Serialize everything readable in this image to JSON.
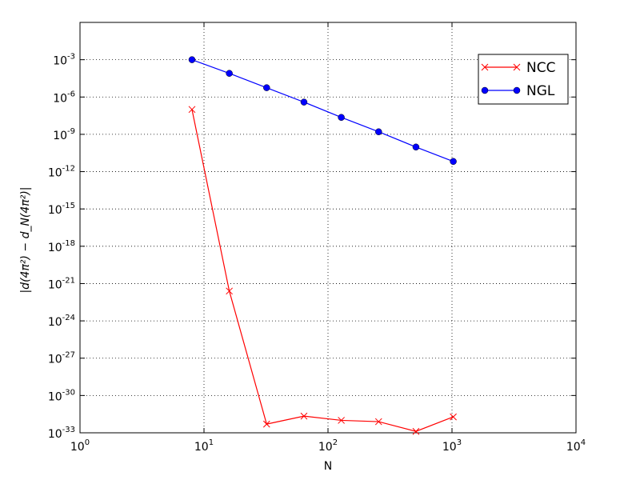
{
  "chart_data": {
    "type": "line",
    "x_label": "N",
    "y_label": "|d(4π²) − d_N(4π²)|",
    "x": [
      8,
      16,
      32,
      64,
      128,
      256,
      512,
      1024
    ],
    "series": [
      {
        "name": "NCC",
        "color": "#ff0000",
        "marker": "x",
        "values": [
          1e-07,
          2.5e-22,
          5e-33,
          2.2e-32,
          1e-32,
          7.9e-33,
          1.3e-33,
          1.9e-32
        ]
      },
      {
        "name": "NGL",
        "color": "#0000ff",
        "marker": "o",
        "values": [
          0.001,
          8e-05,
          5.6e-06,
          3.9e-07,
          2.3e-08,
          1.6e-09,
          9.5e-11,
          6.6e-12
        ]
      }
    ],
    "xlog": true,
    "ylog": true,
    "xlim": [
      1,
      10000
    ],
    "ylim": [
      1e-33,
      1
    ],
    "xticks": [
      {
        "value": 1,
        "label": "10^0"
      },
      {
        "value": 10,
        "label": "10^1"
      },
      {
        "value": 100,
        "label": "10^2"
      },
      {
        "value": 1000,
        "label": "10^3"
      },
      {
        "value": 10000,
        "label": "10^4"
      }
    ],
    "yticks": [
      {
        "value": 0.001,
        "label": "10^-3"
      },
      {
        "value": 1e-06,
        "label": "10^-6"
      },
      {
        "value": 1e-09,
        "label": "10^-9"
      },
      {
        "value": 1e-12,
        "label": "10^-12"
      },
      {
        "value": 1e-15,
        "label": "10^-15"
      },
      {
        "value": 1e-18,
        "label": "10^-18"
      },
      {
        "value": 1e-21,
        "label": "10^-21"
      },
      {
        "value": 1e-24,
        "label": "10^-24"
      },
      {
        "value": 1e-27,
        "label": "10^-27"
      },
      {
        "value": 1e-30,
        "label": "10^-30"
      },
      {
        "value": 1e-33,
        "label": "10^-33"
      }
    ],
    "grid": true,
    "legend": "upper right"
  }
}
